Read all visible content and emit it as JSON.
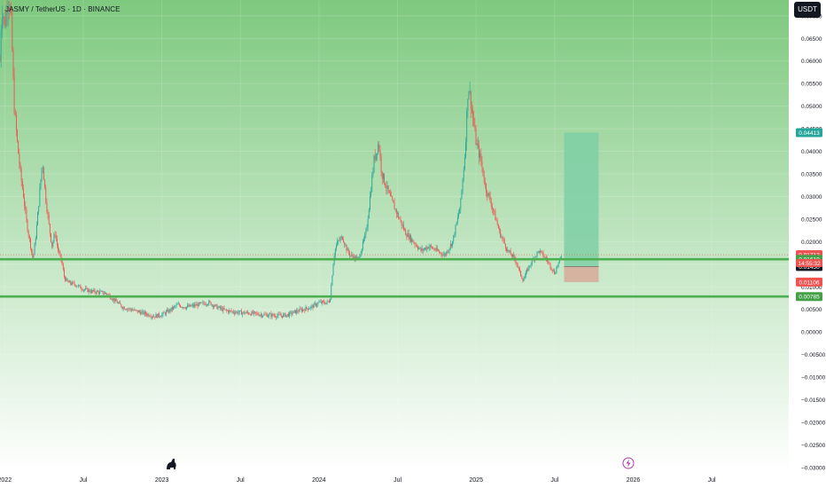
{
  "header": {
    "title": "JASMY / TetherUS · 1D · BINANCE",
    "currency_label": "USDT"
  },
  "colors": {
    "bg_top": "#7ec97f",
    "bg_bottom": "#ffffff",
    "support_line": "#4caf50",
    "candle_up": "#26a69a",
    "candle_down": "#ef5350",
    "target_zone": "#7fcfa6",
    "stop_zone": "#d8a89a",
    "badge_green": "#43a047",
    "badge_red": "#ef5350",
    "badge_teal": "#26a69a"
  },
  "icons": {
    "watermark": "dinosaur-logo-icon",
    "event": "lightning-event-icon"
  },
  "chart_data": {
    "type": "candlestick",
    "title": "JASMY / TetherUS · 1D · BINANCE",
    "ylim": [
      -0.031,
      0.0735
    ],
    "y_ticks": [
      {
        "value": 0.07,
        "label": "0.07000"
      },
      {
        "value": 0.065,
        "label": "0.06500"
      },
      {
        "value": 0.06,
        "label": "0.06000"
      },
      {
        "value": 0.055,
        "label": "0.05500"
      },
      {
        "value": 0.05,
        "label": "0.05000"
      },
      {
        "value": 0.045,
        "label": "0.04500"
      },
      {
        "value": 0.04,
        "label": "0.04000"
      },
      {
        "value": 0.035,
        "label": "0.03500"
      },
      {
        "value": 0.03,
        "label": "0.03000"
      },
      {
        "value": 0.025,
        "label": "0.02500"
      },
      {
        "value": 0.02,
        "label": "0.02000"
      },
      {
        "value": 0.015,
        "label": "0.01500"
      },
      {
        "value": 0.01,
        "label": "0.01000"
      },
      {
        "value": 0.005,
        "label": "0.00500"
      },
      {
        "value": 0.0,
        "label": "0.00000"
      },
      {
        "value": -0.005,
        "label": "−0.00500"
      },
      {
        "value": -0.01,
        "label": "−0.01000"
      },
      {
        "value": -0.015,
        "label": "−0.01500"
      },
      {
        "value": -0.02,
        "label": "−0.02000"
      },
      {
        "value": -0.025,
        "label": "−0.02500"
      },
      {
        "value": -0.03,
        "label": "−0.03000"
      }
    ],
    "x_ticks": [
      {
        "t": 2022.0,
        "label": "2022"
      },
      {
        "t": 2022.5,
        "label": "Jul"
      },
      {
        "t": 2023.0,
        "label": "2023"
      },
      {
        "t": 2023.5,
        "label": "Jul"
      },
      {
        "t": 2024.0,
        "label": "2024"
      },
      {
        "t": 2024.5,
        "label": "Jul"
      },
      {
        "t": 2025.0,
        "label": "2025"
      },
      {
        "t": 2025.5,
        "label": "Jul"
      },
      {
        "t": 2026.0,
        "label": "2026"
      },
      {
        "t": 2026.5,
        "label": "Jul"
      }
    ],
    "xlim": [
      2021.97,
      2026.99
    ],
    "close_path": [
      [
        2021.97,
        0.06
      ],
      [
        2021.98,
        0.072
      ],
      [
        2022.0,
        0.068
      ],
      [
        2022.02,
        0.074
      ],
      [
        2022.04,
        0.07
      ],
      [
        2022.06,
        0.05
      ],
      [
        2022.08,
        0.042
      ],
      [
        2022.1,
        0.035
      ],
      [
        2022.12,
        0.03
      ],
      [
        2022.14,
        0.024
      ],
      [
        2022.16,
        0.02
      ],
      [
        2022.18,
        0.016
      ],
      [
        2022.2,
        0.022
      ],
      [
        2022.22,
        0.03
      ],
      [
        2022.24,
        0.038
      ],
      [
        2022.26,
        0.03
      ],
      [
        2022.28,
        0.024
      ],
      [
        2022.3,
        0.019
      ],
      [
        2022.32,
        0.022
      ],
      [
        2022.34,
        0.018
      ],
      [
        2022.36,
        0.016
      ],
      [
        2022.38,
        0.012
      ],
      [
        2022.4,
        0.011
      ],
      [
        2022.45,
        0.0105
      ],
      [
        2022.5,
        0.0095
      ],
      [
        2022.55,
        0.009
      ],
      [
        2022.6,
        0.0088
      ],
      [
        2022.65,
        0.0085
      ],
      [
        2022.7,
        0.007
      ],
      [
        2022.75,
        0.0055
      ],
      [
        2022.8,
        0.005
      ],
      [
        2022.85,
        0.0045
      ],
      [
        2022.9,
        0.004
      ],
      [
        2022.95,
        0.0035
      ],
      [
        2023.0,
        0.0038
      ],
      [
        2023.05,
        0.0048
      ],
      [
        2023.1,
        0.006
      ],
      [
        2023.15,
        0.0055
      ],
      [
        2023.2,
        0.0058
      ],
      [
        2023.25,
        0.0062
      ],
      [
        2023.3,
        0.0065
      ],
      [
        2023.35,
        0.0055
      ],
      [
        2023.4,
        0.0048
      ],
      [
        2023.45,
        0.0045
      ],
      [
        2023.5,
        0.0043
      ],
      [
        2023.55,
        0.0042
      ],
      [
        2023.6,
        0.004
      ],
      [
        2023.65,
        0.0038
      ],
      [
        2023.7,
        0.0037
      ],
      [
        2023.75,
        0.0036
      ],
      [
        2023.8,
        0.0038
      ],
      [
        2023.85,
        0.0045
      ],
      [
        2023.9,
        0.005
      ],
      [
        2023.95,
        0.0055
      ],
      [
        2024.0,
        0.0065
      ],
      [
        2024.05,
        0.0065
      ],
      [
        2024.07,
        0.007
      ],
      [
        2024.09,
        0.015
      ],
      [
        2024.1,
        0.018
      ],
      [
        2024.12,
        0.02
      ],
      [
        2024.15,
        0.021
      ],
      [
        2024.18,
        0.018
      ],
      [
        2024.2,
        0.017
      ],
      [
        2024.25,
        0.016
      ],
      [
        2024.3,
        0.022
      ],
      [
        2024.35,
        0.038
      ],
      [
        2024.38,
        0.042
      ],
      [
        2024.4,
        0.035
      ],
      [
        2024.45,
        0.03
      ],
      [
        2024.5,
        0.026
      ],
      [
        2024.55,
        0.022
      ],
      [
        2024.6,
        0.02
      ],
      [
        2024.65,
        0.018
      ],
      [
        2024.7,
        0.019
      ],
      [
        2024.75,
        0.018
      ],
      [
        2024.8,
        0.017
      ],
      [
        2024.85,
        0.02
      ],
      [
        2024.9,
        0.028
      ],
      [
        2024.93,
        0.04
      ],
      [
        2024.95,
        0.055
      ],
      [
        2024.97,
        0.05
      ],
      [
        2025.0,
        0.042
      ],
      [
        2025.03,
        0.038
      ],
      [
        2025.06,
        0.032
      ],
      [
        2025.1,
        0.028
      ],
      [
        2025.15,
        0.022
      ],
      [
        2025.2,
        0.018
      ],
      [
        2025.25,
        0.016
      ],
      [
        2025.28,
        0.013
      ],
      [
        2025.3,
        0.0115
      ],
      [
        2025.33,
        0.014
      ],
      [
        2025.36,
        0.016
      ],
      [
        2025.4,
        0.018
      ],
      [
        2025.45,
        0.016
      ],
      [
        2025.5,
        0.013
      ],
      [
        2025.52,
        0.015
      ],
      [
        2025.55,
        0.0171
      ]
    ],
    "price_level_lines": [
      {
        "value": 0.0161,
        "label": "support_upper"
      },
      {
        "value": 0.00785,
        "label": "support_lower"
      }
    ],
    "position_tool": {
      "t_start": 2025.56,
      "t_end": 2025.78,
      "entry": 0.0145,
      "target": 0.04413,
      "stop": 0.01106
    },
    "price_badges": [
      {
        "value": 0.04413,
        "label": "0.04413",
        "color": "#26a69a"
      },
      {
        "value": 0.01712,
        "label": "0.01712",
        "color": "#ef5350"
      },
      {
        "value": 0.0161,
        "label": "0.01610",
        "color": "#43a047"
      },
      {
        "value": 0.0145,
        "label": "0.01450",
        "color": "#131722"
      },
      {
        "value": 0.01106,
        "label": "0.01106",
        "color": "#ef5350"
      },
      {
        "value": 0.00785,
        "label": "0.00785",
        "color": "#43a047"
      }
    ],
    "countdown": "14:55:32",
    "current_price": 0.01712
  }
}
